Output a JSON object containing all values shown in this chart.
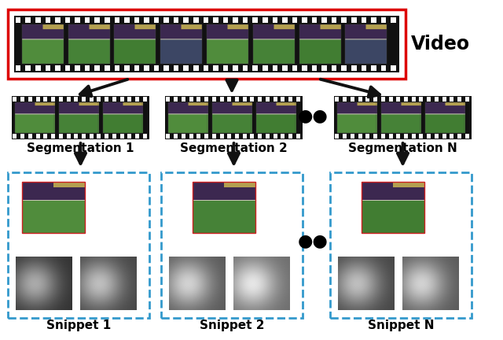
{
  "bg_color": "#ffffff",
  "video_label": "Video",
  "seg_labels": [
    "Segmentation 1",
    "Segmentation 2",
    "Segmentation N"
  ],
  "snippet_labels": [
    "Snippet 1",
    "Snippet 2",
    "Snippet N"
  ],
  "ellipsis": "●●",
  "film_strip_color": "#111111",
  "film_hole_color": "#ffffff",
  "red_box_color": "#dd0000",
  "blue_dash_color": "#3399cc",
  "arrow_color": "#111111",
  "label_fontsize": 11,
  "video_fontsize": 17,
  "court_green": "#5a8c3c",
  "court_light": "#7ab050",
  "crowd_purple": "#3a2a5a",
  "frame_dark": "#1a1a1a",
  "gray1": "#606060",
  "gray2": "#909090",
  "gray3": "#b0b0b0"
}
